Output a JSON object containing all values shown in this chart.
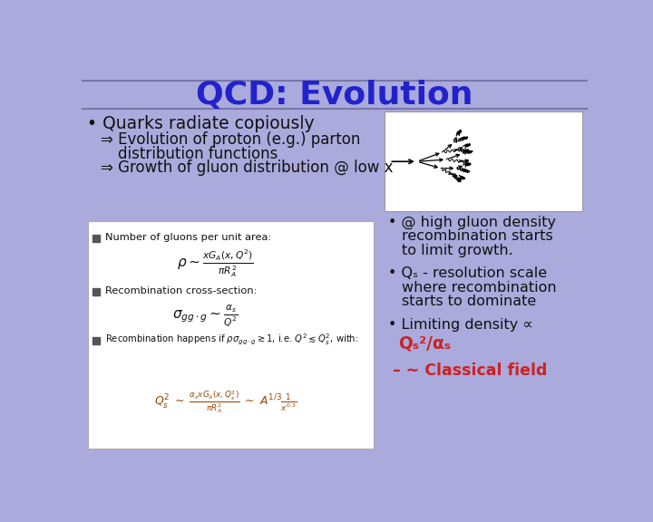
{
  "title": "QCD: Evolution",
  "title_color": "#2222CC",
  "title_fontsize": 26,
  "bg_color": "#AAAADD",
  "bullet1": "Quarks radiate copiously",
  "arrow1_line1": "Evolution of proton (e.g.) parton",
  "arrow1_line2": "distribution functions",
  "arrow2": "Growth of gluon distribution @ low x",
  "box_label1": "Number of gluons per unit area:",
  "box_label2": "Recombination cross-section:",
  "right_b1_line1": "@ high gluon density",
  "right_b1_line2": "recombination starts",
  "right_b1_line3": "to limit growth.",
  "right_b2_line1": "- resolution scale",
  "right_b2_line2": "where recombination",
  "right_b2_line3": "starts to dominate",
  "right_b3_prefix": "Limiting density",
  "right_b4": "~ Classical field",
  "sq_color": "#555555",
  "text_color": "#111111",
  "red_color": "#CC2222",
  "box_bg": "#FFFFFF",
  "img_bg": "#FFFFFF"
}
